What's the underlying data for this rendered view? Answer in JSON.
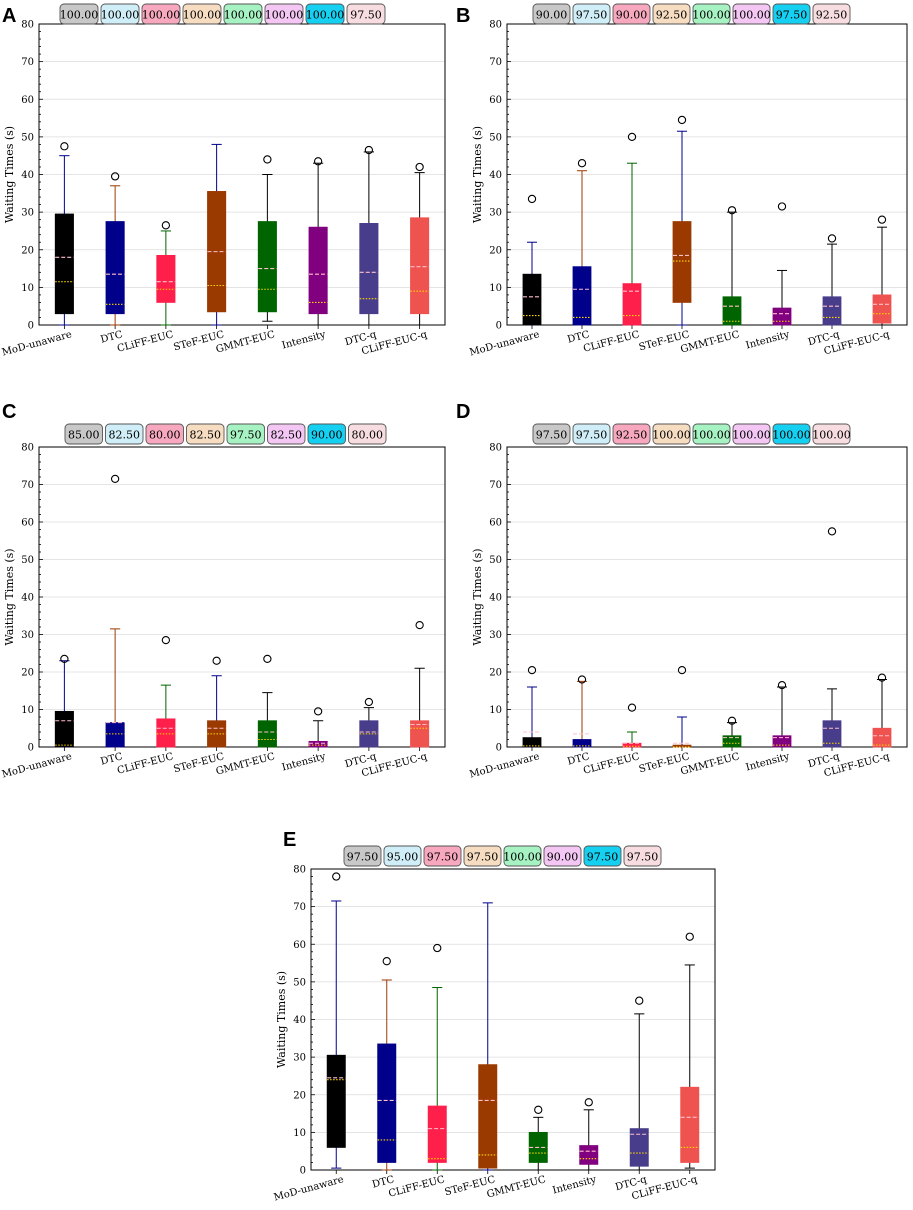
{
  "chart_data": [
    {
      "panel": "A",
      "type": "box",
      "ylabel": "Waiting Times (s)",
      "ylim": [
        0,
        80
      ],
      "yticks": [
        0,
        10,
        20,
        30,
        40,
        50,
        60,
        70,
        80
      ],
      "categories": [
        "MoD-unaware",
        "DTC",
        "CLiFF-EUC",
        "STeF-EUC",
        "GMMT-EUC",
        "Intensity",
        "DTC-q",
        "CLiFF-EUC-q"
      ],
      "success_rates": [
        "100.00",
        "100.00",
        "100.00",
        "100.00",
        "100.00",
        "100.00",
        "100.00",
        "97.50"
      ],
      "boxes": [
        {
          "whislo": 0,
          "q1": 3,
          "med": 11.5,
          "mean": 18,
          "q3": 29.5,
          "whishi": 45,
          "fliers": [
            47.5
          ]
        },
        {
          "whislo": 0,
          "q1": 3,
          "med": 5.5,
          "mean": 13.5,
          "q3": 27.5,
          "whishi": 37,
          "fliers": [
            39.5
          ]
        },
        {
          "whislo": 0,
          "q1": 6,
          "med": 9.5,
          "mean": 11.5,
          "q3": 18.5,
          "whishi": 25,
          "fliers": [
            26.5
          ]
        },
        {
          "whislo": 0,
          "q1": 3.5,
          "med": 10.5,
          "mean": 19.5,
          "q3": 35.5,
          "whishi": 48,
          "fliers": []
        },
        {
          "whislo": 1,
          "q1": 3.5,
          "med": 9.5,
          "mean": 15,
          "q3": 27.5,
          "whishi": 40,
          "fliers": [
            44
          ]
        },
        {
          "whislo": 0,
          "q1": 3,
          "med": 6,
          "mean": 13.5,
          "q3": 26,
          "whishi": 43,
          "fliers": [
            43.5
          ]
        },
        {
          "whislo": 0,
          "q1": 3,
          "med": 7,
          "mean": 14,
          "q3": 27,
          "whishi": 46,
          "fliers": [
            46.5
          ]
        },
        {
          "whislo": 0,
          "q1": 3,
          "med": 9,
          "mean": 15.5,
          "q3": 28.5,
          "whishi": 40.5,
          "fliers": [
            42
          ]
        }
      ]
    },
    {
      "panel": "B",
      "type": "box",
      "ylabel": "Waiting Times (s)",
      "ylim": [
        0,
        80
      ],
      "yticks": [
        0,
        10,
        20,
        30,
        40,
        50,
        60,
        70,
        80
      ],
      "categories": [
        "MoD-unaware",
        "DTC",
        "CLiFF-EUC",
        "STeF-EUC",
        "GMMT-EUC",
        "Intensity",
        "DTC-q",
        "CLiFF-EUC-q"
      ],
      "success_rates": [
        "90.00",
        "97.50",
        "90.00",
        "92.50",
        "100.00",
        "100.00",
        "97.50",
        "92.50"
      ],
      "boxes": [
        {
          "whislo": 0,
          "q1": 0,
          "med": 2.5,
          "mean": 7.5,
          "q3": 13.5,
          "whishi": 22,
          "fliers": [
            33.5
          ]
        },
        {
          "whislo": 0,
          "q1": 0,
          "med": 2,
          "mean": 9.5,
          "q3": 15.5,
          "whishi": 41,
          "fliers": [
            43
          ]
        },
        {
          "whislo": 0,
          "q1": 0,
          "med": 2.5,
          "mean": 9,
          "q3": 11,
          "whishi": 43,
          "fliers": [
            50
          ]
        },
        {
          "whislo": 0,
          "q1": 6,
          "med": 17,
          "mean": 18.5,
          "q3": 27.5,
          "whishi": 51.5,
          "fliers": [
            54.5
          ]
        },
        {
          "whislo": 0,
          "q1": 0,
          "med": 1,
          "mean": 5,
          "q3": 7.5,
          "whishi": 30,
          "fliers": [
            30.5
          ]
        },
        {
          "whislo": 0,
          "q1": 0,
          "med": 1,
          "mean": 3,
          "q3": 4.5,
          "whishi": 14.5,
          "fliers": [
            31.5
          ]
        },
        {
          "whislo": 0,
          "q1": 0,
          "med": 2,
          "mean": 5,
          "q3": 7.5,
          "whishi": 21.5,
          "fliers": [
            23
          ]
        },
        {
          "whislo": 0,
          "q1": 0.5,
          "med": 3,
          "mean": 5.5,
          "q3": 8,
          "whishi": 26,
          "fliers": [
            28
          ]
        }
      ]
    },
    {
      "panel": "C",
      "type": "box",
      "ylabel": "Waiting Times (s)",
      "ylim": [
        0,
        80
      ],
      "yticks": [
        0,
        10,
        20,
        30,
        40,
        50,
        60,
        70,
        80
      ],
      "categories": [
        "MoD-unaware",
        "DTC",
        "CLiFF-EUC",
        "STeF-EUC",
        "GMMT-EUC",
        "Intensity",
        "DTC-q",
        "CLiFF-EUC-q"
      ],
      "success_rates": [
        "85.00",
        "82.50",
        "80.00",
        "82.50",
        "97.50",
        "82.50",
        "90.00",
        "80.00"
      ],
      "boxes": [
        {
          "whislo": 0,
          "q1": 0,
          "med": 0.5,
          "mean": 7,
          "q3": 9.5,
          "whishi": 23,
          "fliers": [
            23.5
          ]
        },
        {
          "whislo": 0,
          "q1": 0,
          "med": 3.5,
          "mean": 6.5,
          "q3": 6.5,
          "whishi": 31.5,
          "fliers": [
            71.5
          ]
        },
        {
          "whislo": 0,
          "q1": 0,
          "med": 3.5,
          "mean": 5,
          "q3": 7.5,
          "whishi": 16.5,
          "fliers": [
            28.5
          ]
        },
        {
          "whislo": 0,
          "q1": 0,
          "med": 3.5,
          "mean": 5,
          "q3": 7,
          "whishi": 19,
          "fliers": [
            23
          ]
        },
        {
          "whislo": 0,
          "q1": 0,
          "med": 2,
          "mean": 4,
          "q3": 7,
          "whishi": 14.5,
          "fliers": [
            23.5
          ]
        },
        {
          "whislo": 0,
          "q1": 0,
          "med": 0.5,
          "mean": 1,
          "q3": 1.5,
          "whishi": 7,
          "fliers": [
            9.5
          ]
        },
        {
          "whislo": 0,
          "q1": 0,
          "med": 3.5,
          "mean": 4,
          "q3": 7,
          "whishi": 10.5,
          "fliers": [
            12
          ]
        },
        {
          "whislo": 0,
          "q1": 0,
          "med": 5,
          "mean": 6,
          "q3": 7,
          "whishi": 21,
          "fliers": [
            32.5
          ]
        }
      ]
    },
    {
      "panel": "D",
      "type": "box",
      "ylabel": "Waiting Times (s)",
      "ylim": [
        0,
        80
      ],
      "yticks": [
        0,
        10,
        20,
        30,
        40,
        50,
        60,
        70,
        80
      ],
      "categories": [
        "MoD-unaware",
        "DTC",
        "CLiFF-EUC",
        "STeF-EUC",
        "GMMT-EUC",
        "Intensity",
        "DTC-q",
        "CLiFF-EUC-q"
      ],
      "success_rates": [
        "97.50",
        "97.50",
        "92.50",
        "100.00",
        "100.00",
        "100.00",
        "100.00",
        "100.00"
      ],
      "boxes": [
        {
          "whislo": 0,
          "q1": 0,
          "med": 0.3,
          "mean": 4,
          "q3": 2.5,
          "whishi": 16,
          "fliers": [
            20.5
          ]
        },
        {
          "whislo": 0,
          "q1": 0,
          "med": 0.3,
          "mean": 3.5,
          "q3": 2,
          "whishi": 17.5,
          "fliers": [
            18
          ]
        },
        {
          "whislo": 0,
          "q1": 0,
          "med": 0.2,
          "mean": 1,
          "q3": 1,
          "whishi": 4,
          "fliers": [
            10.5
          ]
        },
        {
          "whislo": 0,
          "q1": 0,
          "med": 0,
          "mean": 1,
          "q3": 0.5,
          "whishi": 8,
          "fliers": [
            20.5
          ]
        },
        {
          "whislo": 0,
          "q1": 0,
          "med": 1,
          "mean": 2.5,
          "q3": 3,
          "whishi": 6.5,
          "fliers": [
            7
          ]
        },
        {
          "whislo": 0,
          "q1": 0,
          "med": 0.5,
          "mean": 2.5,
          "q3": 3,
          "whishi": 16,
          "fliers": [
            16.5
          ]
        },
        {
          "whislo": 0,
          "q1": 0,
          "med": 1,
          "mean": 5,
          "q3": 7,
          "whishi": 15.5,
          "fliers": [
            57.5
          ]
        },
        {
          "whislo": 0,
          "q1": 0,
          "med": 0.5,
          "mean": 3,
          "q3": 5,
          "whishi": 18,
          "fliers": [
            18.5
          ]
        }
      ]
    },
    {
      "panel": "E",
      "type": "box",
      "ylabel": "Waiting Times (s)",
      "ylim": [
        0,
        80
      ],
      "yticks": [
        0,
        10,
        20,
        30,
        40,
        50,
        60,
        70,
        80
      ],
      "categories": [
        "MoD-unaware",
        "DTC",
        "CLiFF-EUC",
        "STeF-EUC",
        "GMMT-EUC",
        "Intensity",
        "DTC-q",
        "CLiFF-EUC-q"
      ],
      "success_rates": [
        "97.50",
        "95.00",
        "97.50",
        "97.50",
        "100.00",
        "90.00",
        "97.50",
        "97.50"
      ],
      "boxes": [
        {
          "whislo": 0.5,
          "q1": 6,
          "med": 24,
          "mean": 24.5,
          "q3": 30.5,
          "whishi": 71.5,
          "fliers": [
            78
          ]
        },
        {
          "whislo": 0,
          "q1": 2,
          "med": 8,
          "mean": 18.5,
          "q3": 33.5,
          "whishi": 50.5,
          "fliers": [
            55.5
          ]
        },
        {
          "whislo": 0,
          "q1": 2,
          "med": 3,
          "mean": 11,
          "q3": 17,
          "whishi": 48.5,
          "fliers": [
            59
          ]
        },
        {
          "whislo": 0,
          "q1": 0.5,
          "med": 4,
          "mean": 18.5,
          "q3": 28,
          "whishi": 71,
          "fliers": []
        },
        {
          "whislo": 0,
          "q1": 2,
          "med": 4.5,
          "mean": 6,
          "q3": 10,
          "whishi": 14,
          "fliers": [
            16
          ]
        },
        {
          "whislo": 0,
          "q1": 1.5,
          "med": 3,
          "mean": 5,
          "q3": 6.5,
          "whishi": 16,
          "fliers": [
            18
          ]
        },
        {
          "whislo": 0,
          "q1": 1,
          "med": 4.5,
          "mean": 9.5,
          "q3": 11,
          "whishi": 41.5,
          "fliers": [
            45
          ]
        },
        {
          "whislo": 0.5,
          "q1": 2,
          "med": 6,
          "mean": 14,
          "q3": 22,
          "whishi": 54.5,
          "fliers": [
            62
          ]
        }
      ]
    }
  ],
  "colors": {
    "box_fills": [
      "#000000",
      "#00008b",
      "#ff1f4b",
      "#9b3a00",
      "#006400",
      "#800080",
      "#483d8b",
      "#ef5350"
    ],
    "whisker_colors": [
      "#00008b",
      "#9b3a00",
      "#006400",
      "#00008b",
      "#000000",
      "#000000",
      "#000000",
      "#000000"
    ],
    "badge_fills": [
      "#c8c8c8",
      "#d0eef7",
      "#f7a8bf",
      "#f6dcc0",
      "#a6f2c2",
      "#f3c6f4",
      "#15d0f0",
      "#f8dde0"
    ],
    "mean_line": "#ffc0cb",
    "median_line": "#ffd700"
  }
}
